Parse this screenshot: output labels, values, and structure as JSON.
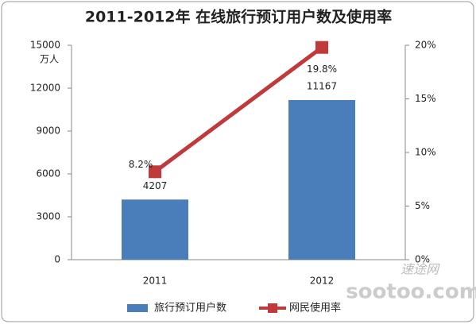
{
  "chart_data": {
    "type": "combo",
    "title": "2011-2012年 在线旅行预订用户数及使用率",
    "y_unit": "万人",
    "categories": [
      "2011",
      "2012"
    ],
    "series": [
      {
        "name": "旅行预订用户数",
        "type": "bar",
        "color": "#4a7ebb",
        "values": [
          4207,
          11167
        ]
      },
      {
        "name": "网民使用率",
        "type": "line",
        "axis": "y2",
        "color": "#c0393b",
        "values": [
          8.2,
          19.8
        ],
        "value_labels": [
          "8.2%",
          "19.8%"
        ]
      }
    ],
    "ylim": [
      0,
      15000
    ],
    "yticks": [
      0,
      3000,
      6000,
      9000,
      12000,
      15000
    ],
    "y2lim": [
      0,
      20
    ],
    "y2ticks": [
      {
        "value": 0,
        "label": "0%"
      },
      {
        "value": 5,
        "label": "5%"
      },
      {
        "value": 10,
        "label": "10%"
      },
      {
        "value": 15,
        "label": "15%"
      },
      {
        "value": 20,
        "label": "20%"
      }
    ],
    "grid": false,
    "legend": "bottom",
    "watermark": [
      "速途网",
      "sootoo.com"
    ]
  }
}
